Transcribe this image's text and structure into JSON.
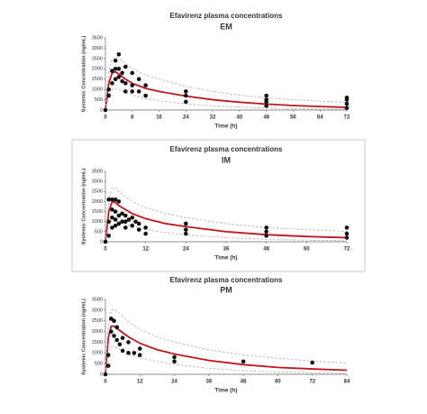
{
  "chart_data": [
    {
      "type": "scatter",
      "title": "Efavirenz plasma concentrations",
      "subtitle": "EM",
      "xlabel": "Time (h)",
      "ylabel": "Systemic Concentration (ng/mL)",
      "xlim": [
        0,
        72
      ],
      "ylim": [
        0,
        3500
      ],
      "xticks": [
        0,
        8,
        16,
        24,
        32,
        40,
        48,
        56,
        64,
        72
      ],
      "yticks": [
        0,
        500,
        1000,
        1500,
        2000,
        2500,
        3000,
        3500
      ],
      "points": {
        "color": "#111111",
        "x": [
          0,
          1,
          1,
          2,
          2,
          3,
          3,
          3,
          4,
          4,
          4,
          5,
          5,
          6,
          6,
          6,
          8,
          8,
          8,
          10,
          10,
          12,
          12,
          24,
          24,
          24,
          48,
          48,
          48,
          48,
          72,
          72,
          72,
          72
        ],
        "values": [
          0,
          700,
          1000,
          1900,
          1300,
          2400,
          2000,
          1500,
          2700,
          2000,
          1600,
          1800,
          1400,
          2100,
          1300,
          900,
          1800,
          1200,
          900,
          1500,
          900,
          1200,
          700,
          900,
          700,
          400,
          700,
          500,
          400,
          200,
          600,
          500,
          300,
          100
        ]
      },
      "series": [
        {
          "color": "#c0171c",
          "style": "solid",
          "x": [
            0,
            1,
            2,
            3,
            4,
            6,
            8,
            12,
            16,
            24,
            32,
            40,
            48,
            56,
            64,
            72
          ],
          "values": [
            0,
            1300,
            1800,
            1850,
            1750,
            1500,
            1300,
            1050,
            900,
            680,
            500,
            380,
            290,
            220,
            170,
            130
          ]
        },
        {
          "color": "#aaaaaa",
          "style": "dashed",
          "x": [
            0,
            1,
            2,
            3,
            4,
            6,
            8,
            12,
            16,
            24,
            32,
            40,
            48,
            56,
            64,
            72
          ],
          "values": [
            0,
            1900,
            2500,
            2600,
            2500,
            2250,
            2000,
            1700,
            1500,
            1150,
            900,
            720,
            600,
            500,
            430,
            380
          ]
        },
        {
          "color": "#aaaaaa",
          "style": "dashed",
          "x": [
            0,
            1,
            2,
            3,
            4,
            6,
            8,
            12,
            16,
            24,
            32,
            40,
            48,
            56,
            64,
            72
          ],
          "values": [
            0,
            700,
            1000,
            1050,
            1000,
            850,
            720,
            560,
            450,
            300,
            200,
            140,
            100,
            70,
            50,
            40
          ]
        }
      ]
    },
    {
      "type": "scatter",
      "title": "Efavirenz plasma concentrations",
      "subtitle": "IM",
      "xlabel": "Time (h)",
      "ylabel": "Systemic Concentration (ng/mL)",
      "xlim": [
        0,
        72
      ],
      "ylim": [
        0,
        3500
      ],
      "xticks": [
        0,
        12,
        24,
        36,
        48,
        60,
        72
      ],
      "yticks": [
        0,
        500,
        1000,
        1500,
        2000,
        2500,
        3000,
        3500
      ],
      "points": {
        "color": "#111111",
        "x": [
          0,
          1,
          1,
          1,
          2,
          2,
          2,
          2,
          3,
          3,
          3,
          3,
          4,
          4,
          4,
          5,
          5,
          6,
          6,
          6,
          7,
          8,
          8,
          9,
          10,
          10,
          12,
          12,
          24,
          24,
          24,
          48,
          48,
          48,
          72,
          72,
          72
        ],
        "values": [
          0,
          2100,
          1000,
          300,
          2100,
          1600,
          1200,
          700,
          2100,
          1500,
          1100,
          800,
          2000,
          1300,
          900,
          1400,
          1000,
          1300,
          1000,
          700,
          1100,
          1200,
          800,
          1000,
          900,
          600,
          700,
          400,
          900,
          600,
          400,
          700,
          500,
          300,
          700,
          400,
          200
        ]
      },
      "series": [
        {
          "color": "#c0171c",
          "style": "solid",
          "x": [
            0,
            1,
            2,
            3,
            4,
            6,
            8,
            12,
            18,
            24,
            36,
            48,
            60,
            72
          ],
          "values": [
            0,
            1500,
            2000,
            1950,
            1800,
            1600,
            1400,
            1150,
            900,
            750,
            500,
            350,
            260,
            200
          ]
        },
        {
          "color": "#aaaaaa",
          "style": "dashed",
          "x": [
            0,
            1,
            2,
            3,
            4,
            6,
            8,
            12,
            18,
            24,
            36,
            48,
            60,
            72
          ],
          "values": [
            0,
            2100,
            2700,
            2650,
            2500,
            2250,
            2000,
            1700,
            1400,
            1200,
            900,
            700,
            600,
            520
          ]
        },
        {
          "color": "#aaaaaa",
          "style": "dashed",
          "x": [
            0,
            1,
            2,
            3,
            4,
            6,
            8,
            12,
            18,
            24,
            36,
            48,
            60,
            72
          ],
          "values": [
            0,
            800,
            1100,
            1100,
            1000,
            900,
            780,
            600,
            450,
            340,
            200,
            120,
            80,
            50
          ]
        }
      ]
    },
    {
      "type": "scatter",
      "title": "Efavirenz plasma concentrations",
      "subtitle": "PM",
      "xlabel": "Time (h)",
      "ylabel": "Systemic Concentration (ng/mL)",
      "xlim": [
        0,
        84
      ],
      "ylim": [
        0,
        3500
      ],
      "xticks": [
        0,
        12,
        24,
        36,
        48,
        60,
        72,
        84
      ],
      "yticks": [
        0,
        500,
        1000,
        1500,
        2000,
        2500,
        3000,
        3500
      ],
      "points": {
        "color": "#111111",
        "x": [
          0,
          1,
          1,
          2,
          2,
          3,
          3,
          4,
          4,
          5,
          6,
          6,
          8,
          8,
          10,
          12,
          12,
          24,
          24,
          48,
          72
        ],
        "values": [
          0,
          900,
          400,
          2600,
          2000,
          2500,
          1800,
          2200,
          1600,
          1400,
          1700,
          1100,
          1500,
          1000,
          1000,
          1200,
          900,
          800,
          600,
          600,
          550
        ]
      },
      "series": [
        {
          "color": "#c0171c",
          "style": "solid",
          "x": [
            0,
            1,
            2,
            3,
            4,
            6,
            8,
            12,
            18,
            24,
            36,
            48,
            60,
            72,
            84
          ],
          "values": [
            0,
            1700,
            2250,
            2250,
            2150,
            1950,
            1750,
            1450,
            1150,
            950,
            650,
            450,
            320,
            250,
            190
          ]
        },
        {
          "color": "#aaaaaa",
          "style": "dashed",
          "x": [
            0,
            1,
            2,
            3,
            4,
            6,
            8,
            12,
            18,
            24,
            36,
            48,
            60,
            72,
            84
          ],
          "values": [
            0,
            2300,
            3000,
            3050,
            2950,
            2700,
            2450,
            2100,
            1750,
            1500,
            1150,
            900,
            750,
            620,
            520
          ]
        },
        {
          "color": "#aaaaaa",
          "style": "dashed",
          "x": [
            0,
            1,
            2,
            3,
            4,
            6,
            8,
            12,
            18,
            24,
            36,
            48,
            60,
            72,
            84
          ],
          "values": [
            0,
            900,
            1300,
            1300,
            1250,
            1100,
            950,
            780,
            600,
            470,
            280,
            170,
            110,
            70,
            45
          ]
        }
      ]
    }
  ]
}
